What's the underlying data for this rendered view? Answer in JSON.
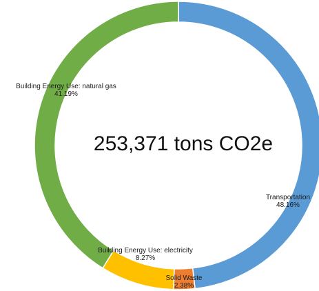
{
  "chart_data": {
    "type": "pie",
    "subtype": "donut",
    "center_label": "253,371 tons CO2e",
    "slices": [
      {
        "label": "Transportation",
        "value": 48.16,
        "value_text": "48.16%",
        "color": "#5b9bd5"
      },
      {
        "label": "Solid Waste",
        "value": 2.38,
        "value_text": "2.38%",
        "color": "#ed7d31"
      },
      {
        "label": "Building Energy Use: electricity",
        "value": 8.27,
        "value_text": "8.27%",
        "color": "#ffc000"
      },
      {
        "label": "Building Energy Use: natural gas",
        "value": 41.19,
        "value_text": "41.19%",
        "color": "#70ad47"
      }
    ]
  }
}
